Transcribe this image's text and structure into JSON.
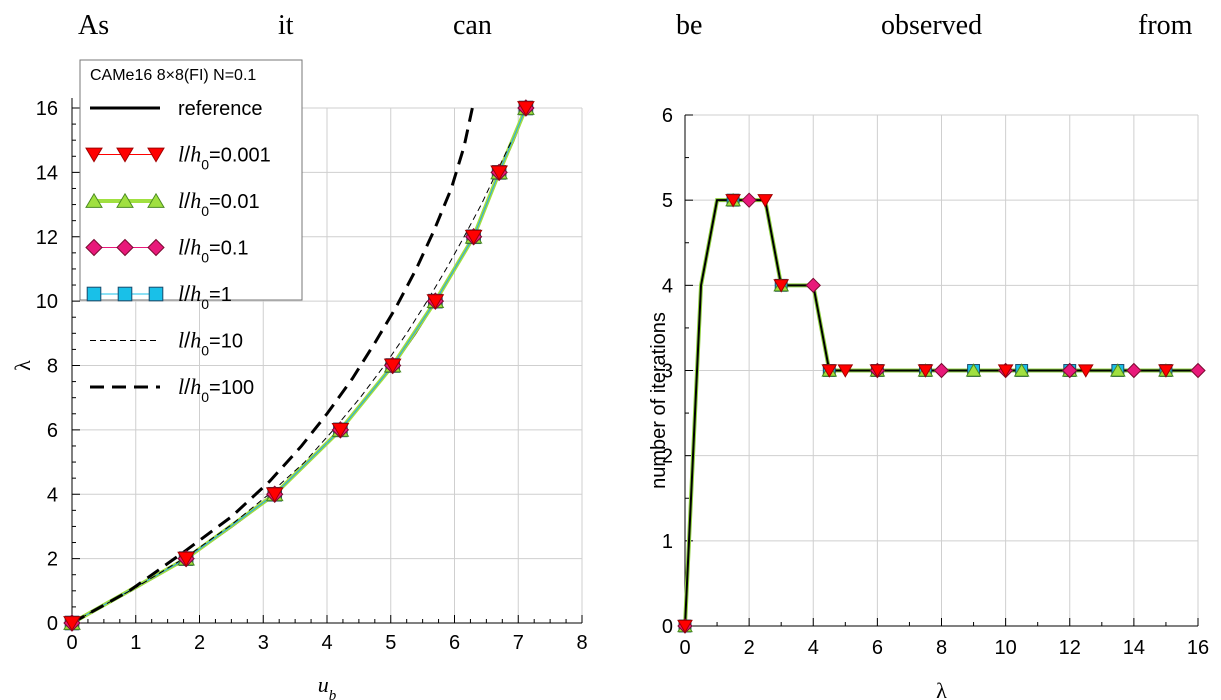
{
  "document": {
    "words": [
      "As",
      "it",
      "can",
      "be",
      "observed",
      "from"
    ]
  },
  "chart_data": [
    {
      "type": "line",
      "xlabel": "u_b",
      "ylabel": "λ",
      "xlim": [
        0,
        8
      ],
      "ylim": [
        0,
        16
      ],
      "xticks": [
        0,
        1,
        2,
        3,
        4,
        5,
        6,
        7,
        8
      ],
      "yticks": [
        0,
        2,
        4,
        6,
        8,
        10,
        12,
        14,
        16
      ],
      "grid": true,
      "legend": {
        "title": "CAMe16 8×8(FI) N=0.1",
        "placement": "top-left"
      },
      "series": [
        {
          "name": "reference",
          "style": "solid-thick",
          "color": "#000000",
          "x": [
            0,
            1.0,
            1.79,
            2.5,
            3.18,
            3.7,
            4.21,
            4.62,
            5.03,
            5.38,
            5.7,
            6.0,
            6.3,
            6.5,
            6.7,
            6.92,
            7.12
          ],
          "y": [
            0,
            1.1,
            2,
            3,
            4,
            5,
            6,
            7,
            8,
            9,
            10,
            11,
            12,
            13,
            14,
            15,
            16
          ]
        },
        {
          "name": "l/h0=0.001",
          "label": "=0.001",
          "marker": "triangle-down",
          "color": "#ff0000",
          "x": [
            0,
            1.79,
            3.18,
            4.21,
            5.03,
            5.7,
            6.3,
            6.7,
            7.12
          ],
          "y": [
            0,
            2,
            4,
            6,
            8,
            10,
            12,
            14,
            16
          ]
        },
        {
          "name": "l/h0=0.01",
          "label": "=0.01",
          "marker": "triangle-up",
          "color": "#a0e040",
          "x": [
            0,
            1.79,
            3.18,
            4.21,
            5.03,
            5.7,
            6.3,
            6.7,
            7.12
          ],
          "y": [
            0,
            2,
            4,
            6,
            8,
            10,
            12,
            14,
            16
          ]
        },
        {
          "name": "l/h0=0.1",
          "label": "=0.1",
          "marker": "diamond",
          "color": "#e8197a",
          "x": [
            0,
            1.79,
            3.18,
            4.21,
            5.03,
            5.7,
            6.3,
            6.7,
            7.12
          ],
          "y": [
            0,
            2,
            4,
            6,
            8,
            10,
            12,
            14,
            16
          ]
        },
        {
          "name": "l/h0=1",
          "label": "=1",
          "marker": "square",
          "color": "#19c0e8",
          "x": [
            0,
            1.79,
            3.18,
            4.21,
            5.03,
            5.7,
            6.3,
            6.7,
            7.12
          ],
          "y": [
            0,
            2,
            4,
            6,
            8,
            10,
            12,
            14,
            16
          ]
        },
        {
          "name": "l/h0=10",
          "label": "=10",
          "style": "dashed-thin",
          "color": "#000000",
          "x": [
            0,
            1.0,
            1.79,
            2.5,
            3.12,
            3.65,
            4.1,
            4.52,
            4.9,
            5.25,
            5.57,
            5.87,
            6.15,
            6.42,
            6.66,
            6.9
          ],
          "y": [
            0,
            1.1,
            2.05,
            3.05,
            4.05,
            5.0,
            6.0,
            7.0,
            8.0,
            9.0,
            10.0,
            11.0,
            12.0,
            13.0,
            14.0,
            15.0
          ]
        },
        {
          "name": "l/h0=100",
          "label": "=100",
          "style": "dashed-thick",
          "color": "#000000",
          "x": [
            0,
            0.9,
            1.75,
            2.5,
            3.1,
            3.6,
            4.0,
            4.4,
            4.75,
            5.08,
            5.4,
            5.68,
            5.95,
            6.15,
            6.28
          ],
          "y": [
            0,
            1.0,
            2.2,
            3.3,
            4.4,
            5.5,
            6.5,
            7.6,
            8.7,
            9.8,
            11.0,
            12.2,
            13.5,
            14.8,
            16.0
          ]
        }
      ]
    },
    {
      "type": "line",
      "xlabel": "λ",
      "ylabel": "number of iterations",
      "xlim": [
        0,
        16
      ],
      "ylim": [
        0,
        6
      ],
      "xticks": [
        0,
        2,
        4,
        6,
        8,
        10,
        12,
        14,
        16
      ],
      "yticks": [
        0,
        1,
        2,
        3,
        4,
        5,
        6
      ],
      "grid": true,
      "line": {
        "x": [
          0,
          0.5,
          1.0,
          1.5,
          2.0,
          2.5,
          3.0,
          3.5,
          4.0,
          4.5,
          16
        ],
        "y": [
          0,
          4,
          5,
          5,
          5,
          5,
          4,
          4,
          4,
          3,
          3
        ]
      },
      "series": [
        {
          "name": "l/h0=0.001",
          "marker": "triangle-down",
          "color": "#ff0000",
          "x": [
            0,
            1.5,
            2.5,
            3.0,
            4.5,
            5.0,
            6.0,
            7.5,
            10.0,
            12.5,
            15.0
          ],
          "y": [
            0,
            5,
            5,
            4,
            3,
            3,
            3,
            3,
            3,
            3,
            3
          ]
        },
        {
          "name": "l/h0=0.01",
          "marker": "triangle-up",
          "color": "#a0e040",
          "x": [
            0,
            1.5,
            3.0,
            4.5,
            6.0,
            7.5,
            9.0,
            10.5,
            12.0,
            13.5,
            15.0
          ],
          "y": [
            0,
            5,
            4,
            3,
            3,
            3,
            3,
            3,
            3,
            3,
            3
          ]
        },
        {
          "name": "l/h0=0.1",
          "marker": "diamond",
          "color": "#e8197a",
          "x": [
            0,
            2.0,
            4.0,
            6.0,
            8.0,
            10.0,
            12.0,
            14.0,
            16.0
          ],
          "y": [
            0,
            5,
            4,
            3,
            3,
            3,
            3,
            3,
            3
          ]
        },
        {
          "name": "l/h0=1",
          "marker": "square",
          "color": "#19c0e8",
          "x": [
            0,
            1.5,
            3.0,
            4.5,
            6.0,
            7.5,
            9.0,
            10.5,
            12.0,
            13.5,
            15.0
          ],
          "y": [
            0,
            5,
            4,
            3,
            3,
            3,
            3,
            3,
            3,
            3,
            3
          ]
        }
      ]
    }
  ]
}
